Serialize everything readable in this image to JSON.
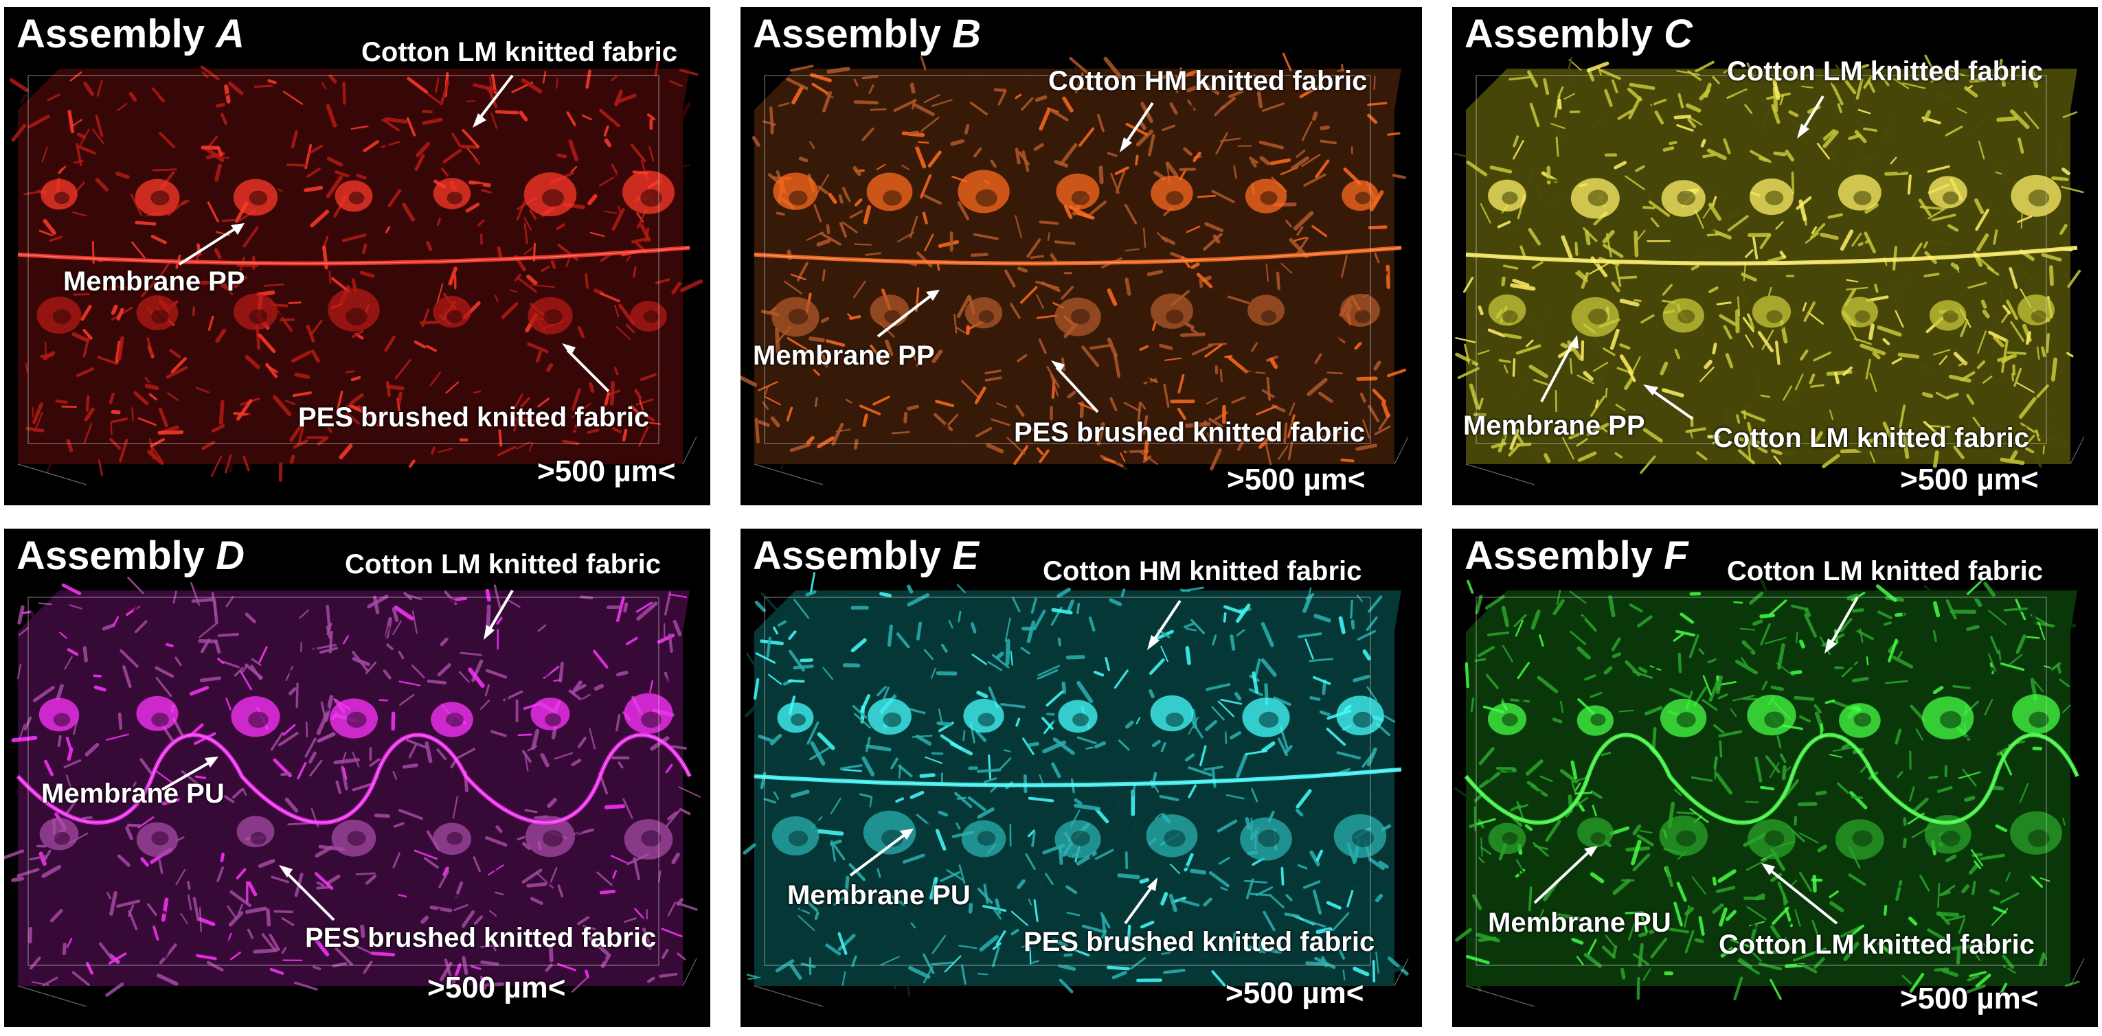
{
  "panels": [
    {
      "id": "A",
      "title_prefix": "Assembly ",
      "title_letter": "A",
      "colors": {
        "dark": "#3a0606",
        "base": "#b31a14",
        "bright": "#ff3a2a"
      },
      "membrane_label": "Membrane PP",
      "membrane_shape": "flat",
      "labels": {
        "top": "Cotton LM knitted fabric",
        "membrane": "Membrane PP",
        "bottom": "PES brushed knitted fabric"
      },
      "scale": ">500 µm<"
    },
    {
      "id": "B",
      "title_prefix": "Assembly ",
      "title_letter": "B",
      "colors": {
        "dark": "#3a1a08",
        "base": "#b0582a",
        "bright": "#ff6a1e"
      },
      "membrane_shape": "flat",
      "labels": {
        "top": "Cotton HM knitted fabric",
        "membrane": "Membrane PP",
        "bottom": "PES brushed knitted fabric"
      },
      "scale": ">500 µm<"
    },
    {
      "id": "C",
      "title_prefix": "Assembly ",
      "title_letter": "C",
      "colors": {
        "dark": "#4a4a08",
        "base": "#c8c83a",
        "bright": "#fff066"
      },
      "membrane_shape": "flat",
      "labels": {
        "top": "Cotton LM knitted fabric",
        "membrane": "Membrane PP",
        "bottom": "Cotton LM knitted fabric"
      },
      "scale": ">500 µm<"
    },
    {
      "id": "D",
      "title_prefix": "Assembly ",
      "title_letter": "D",
      "colors": {
        "dark": "#3a0a3a",
        "base": "#a44aa4",
        "bright": "#ff33ff"
      },
      "membrane_shape": "wavy",
      "labels": {
        "top": "Cotton LM knitted fabric",
        "membrane": "Membrane PU",
        "bottom": "PES brushed knitted fabric"
      },
      "scale": ">500 µm<"
    },
    {
      "id": "E",
      "title_prefix": "Assembly ",
      "title_letter": "E",
      "colors": {
        "dark": "#063a3a",
        "base": "#2ab0b0",
        "bright": "#44ffff"
      },
      "membrane_shape": "flat",
      "labels": {
        "top": "Cotton HM knitted fabric",
        "membrane": "Membrane PU",
        "bottom": "PES brushed knitted fabric"
      },
      "scale": ">500 µm<"
    },
    {
      "id": "F",
      "title_prefix": "Assembly ",
      "title_letter": "F",
      "colors": {
        "dark": "#0a3a0a",
        "base": "#2aa42a",
        "bright": "#44ff44"
      },
      "membrane_shape": "wavy",
      "labels": {
        "top": "Cotton LM knitted fabric",
        "membrane": "Membrane PU",
        "bottom": "Cotton LM knitted fabric"
      },
      "scale": ">500 µm<"
    }
  ]
}
